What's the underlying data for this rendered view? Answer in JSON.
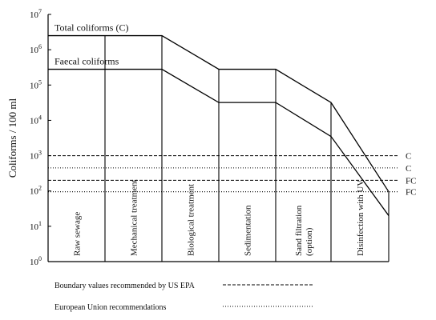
{
  "chart_data": {
    "type": "line",
    "xlabel": "",
    "ylabel": "Coliforms / 100 ml",
    "y_scale": "log",
    "ylim": [
      1,
      10000000
    ],
    "y_ticks": [
      {
        "value": 1,
        "base": "10",
        "exp": "0"
      },
      {
        "value": 10,
        "base": "10",
        "exp": "1"
      },
      {
        "value": 100,
        "base": "10",
        "exp": "2"
      },
      {
        "value": 1000,
        "base": "10",
        "exp": "3"
      },
      {
        "value": 10000,
        "base": "10",
        "exp": "4"
      },
      {
        "value": 100000,
        "base": "10",
        "exp": "5"
      },
      {
        "value": 1000000,
        "base": "10",
        "exp": "6"
      },
      {
        "value": 10000000,
        "base": "10",
        "exp": "7"
      }
    ],
    "stages": [
      {
        "lines": [
          "Raw sewage"
        ]
      },
      {
        "lines": [
          "Mechanical treatment"
        ]
      },
      {
        "lines": [
          "Biological treatment"
        ]
      },
      {
        "lines": [
          "Sedimentation"
        ]
      },
      {
        "lines": [
          "Sand filtration",
          "(option)"
        ]
      },
      {
        "lines": [
          "Disinfection with UV"
        ]
      }
    ],
    "series": [
      {
        "name": "Total coliforms (C)",
        "points": [
          {
            "x": 0,
            "y": 2500000
          },
          {
            "x": 2,
            "y": 2500000
          },
          {
            "x": 3,
            "y": 280000
          },
          {
            "x": 4,
            "y": 280000
          },
          {
            "x": 5,
            "y": 32000
          },
          {
            "x": 6,
            "y": 95
          }
        ]
      },
      {
        "name": "Faecal coliforms",
        "points": [
          {
            "x": 0,
            "y": 280000
          },
          {
            "x": 2,
            "y": 280000
          },
          {
            "x": 3,
            "y": 32000
          },
          {
            "x": 4,
            "y": 32000
          },
          {
            "x": 5,
            "y": 3500
          },
          {
            "x": 6,
            "y": 20
          }
        ]
      }
    ],
    "reference_lines": [
      {
        "value": 1000,
        "style": "dashed",
        "label": "C"
      },
      {
        "value": 450,
        "style": "dotted",
        "label": "C"
      },
      {
        "value": 200,
        "style": "dashed",
        "label": "FC"
      },
      {
        "value": 95,
        "style": "dotted",
        "label": "FC"
      }
    ],
    "legend": [
      {
        "label": "Boundary values recommended by US EPA",
        "style": "dashed"
      },
      {
        "label": "European Union recommendations",
        "style": "dotted"
      }
    ]
  }
}
